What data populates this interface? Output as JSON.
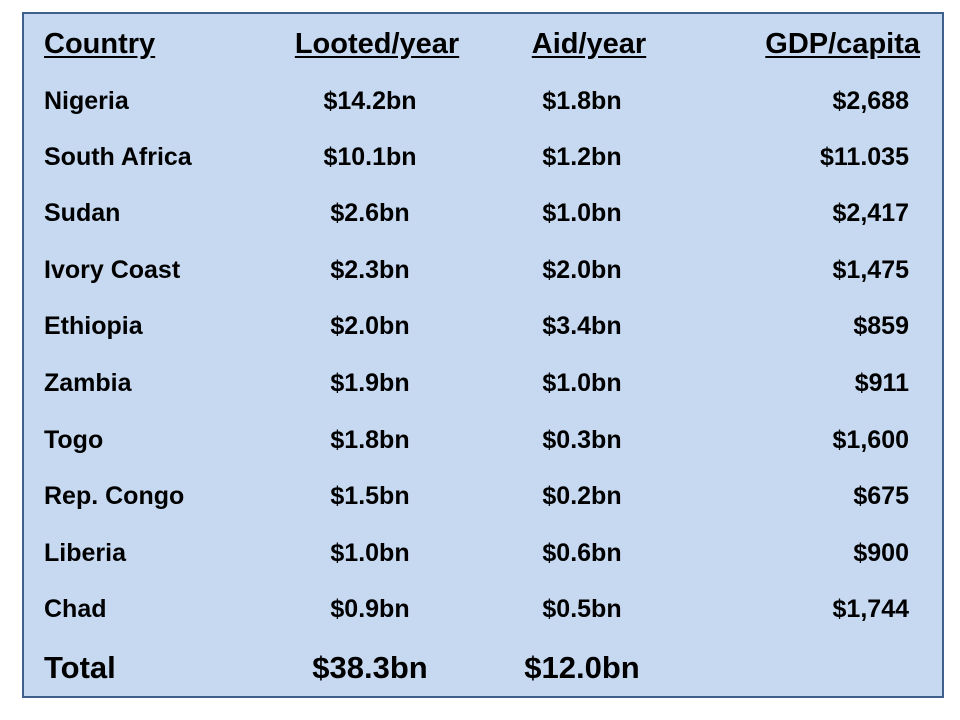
{
  "headers": {
    "country": "Country",
    "looted": "Looted/year",
    "aid": "Aid/year",
    "gdp": "GDP/capita"
  },
  "rows": [
    {
      "country": "Nigeria",
      "looted": "$14.2bn",
      "aid": "$1.8bn",
      "gdp": "$2,688"
    },
    {
      "country": "South Africa",
      "looted": "$10.1bn",
      "aid": "$1.2bn",
      "gdp": "$11.035"
    },
    {
      "country": "Sudan",
      "looted": "$2.6bn",
      "aid": "$1.0bn",
      "gdp": "$2,417"
    },
    {
      "country": "Ivory Coast",
      "looted": "$2.3bn",
      "aid": "$2.0bn",
      "gdp": "$1,475"
    },
    {
      "country": "Ethiopia",
      "looted": "$2.0bn",
      "aid": "$3.4bn",
      "gdp": "$859"
    },
    {
      "country": "Zambia",
      "looted": "$1.9bn",
      "aid": "$1.0bn",
      "gdp": "$911"
    },
    {
      "country": "Togo",
      "looted": "$1.8bn",
      "aid": "$0.3bn",
      "gdp": "$1,600"
    },
    {
      "country": "Rep. Congo",
      "looted": "$1.5bn",
      "aid": "$0.2bn",
      "gdp": "$675"
    },
    {
      "country": "Liberia",
      "looted": "$1.0bn",
      "aid": "$0.6bn",
      "gdp": "$900"
    },
    {
      "country": "Chad",
      "looted": "$0.9bn",
      "aid": "$0.5bn",
      "gdp": "$1,744"
    }
  ],
  "total": {
    "label": "Total",
    "looted": "$38.3bn",
    "aid": "$12.0bn"
  }
}
